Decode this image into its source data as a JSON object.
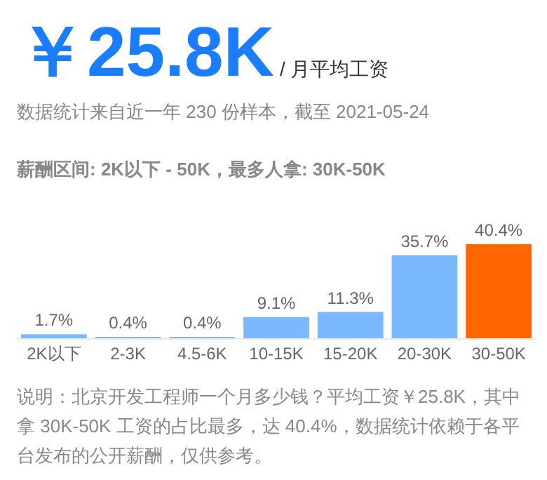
{
  "chart_data": {
    "type": "bar",
    "title": "￥25.8K",
    "subtitle": "/ 月平均工资",
    "annotations": [
      "数据统计来自近一年 230 份样本，截至 2021-05-24",
      "薪酬区间: 2K以下 - 50K，最多人拿: 30K-50K",
      "说明：北京开发工程师一个月多少钱？平均工资￥25.8K，其中拿 30K-50K 工资的占比最多，达 40.4%，数据统计依赖于各平台发布的公开薪酬，仅供参考。"
    ],
    "categories": [
      "2K以下",
      "2-3K",
      "4.5-6K",
      "10-15K",
      "15-20K",
      "20-30K",
      "30-50K"
    ],
    "values": [
      1.7,
      0.4,
      0.4,
      9.1,
      11.3,
      35.7,
      40.4
    ],
    "value_labels": [
      "1.7%",
      "0.4%",
      "0.4%",
      "9.1%",
      "11.3%",
      "35.7%",
      "40.4%"
    ],
    "colors": [
      "#7ab8ff",
      "#7ab8ff",
      "#7ab8ff",
      "#7ab8ff",
      "#7ab8ff",
      "#7ab8ff",
      "#ff6600"
    ]
  }
}
